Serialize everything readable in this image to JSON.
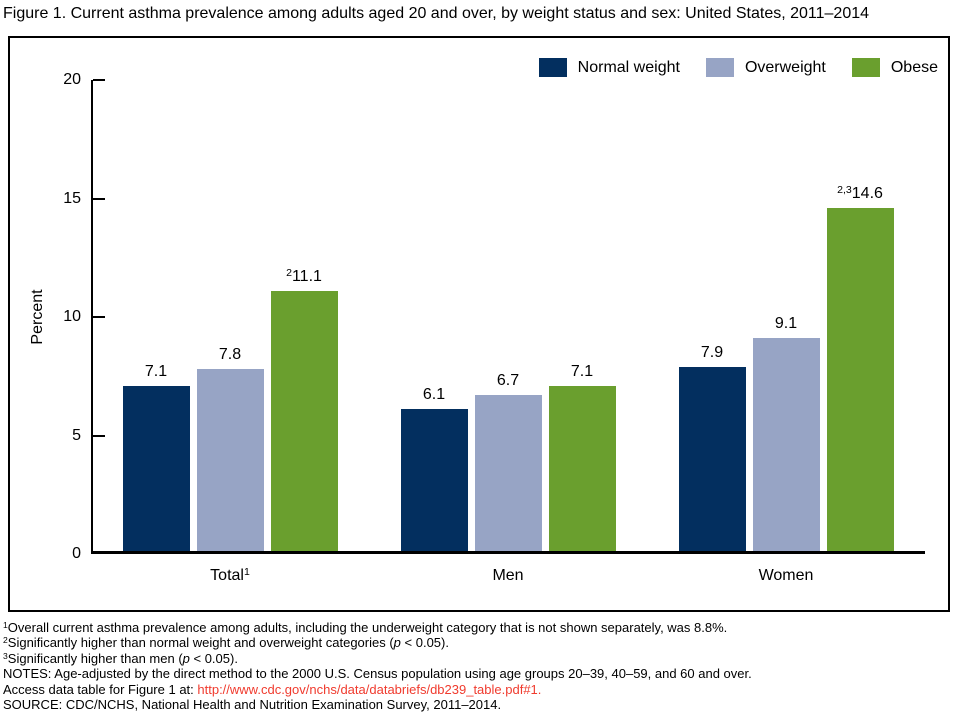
{
  "chart_data": {
    "type": "bar",
    "title": "Figure 1. Current asthma prevalence among adults aged 20 and over, by weight status and sex: United States, 2011–2014",
    "ylabel": "Percent",
    "xlabel": "",
    "categories": [
      "Total",
      "Men",
      "Women"
    ],
    "category_sups": [
      "1",
      "",
      ""
    ],
    "series": [
      {
        "name": "Normal weight",
        "color": "#032f5f",
        "values": [
          7.1,
          6.1,
          7.9
        ],
        "labels": [
          "7.1",
          "6.1",
          "7.9"
        ],
        "label_sups": [
          "",
          "",
          ""
        ]
      },
      {
        "name": "Overweight",
        "color": "#97a4c5",
        "values": [
          7.8,
          6.7,
          9.1
        ],
        "labels": [
          "7.8",
          "6.7",
          "9.1"
        ],
        "label_sups": [
          "",
          "",
          ""
        ]
      },
      {
        "name": "Obese",
        "color": "#6a9f2e",
        "values": [
          11.1,
          7.1,
          14.6
        ],
        "labels": [
          "11.1",
          "7.1",
          "14.6"
        ],
        "label_sups": [
          "2",
          "",
          "2,3"
        ]
      }
    ],
    "ylim": [
      0,
      20
    ],
    "yticks": [
      0,
      5,
      10,
      15,
      20
    ],
    "grid": false,
    "value_labels": true,
    "legend_position": "top-right"
  },
  "legend": {
    "items": [
      {
        "label": "Normal weight",
        "color": "#032f5f"
      },
      {
        "label": "Overweight",
        "color": "#97a4c5"
      },
      {
        "label": "Obese",
        "color": "#6a9f2e"
      }
    ]
  },
  "colors": {
    "bar_normal_weight": "#032f5f",
    "bar_overweight": "#97a4c5",
    "bar_obese": "#6a9f2e",
    "link": "#f03b2e",
    "axis": "#000000",
    "frame_border": "#000000",
    "background": "#ffffff"
  },
  "footnotes": {
    "lines": [
      {
        "segments": [
          {
            "sup": "1"
          },
          {
            "text": "Overall current asthma prevalence among adults, including the underweight category that is not shown separately, was 8.8%."
          }
        ]
      },
      {
        "segments": [
          {
            "sup": "2"
          },
          {
            "text": "Significantly higher than normal weight and overweight categories ("
          },
          {
            "text": "p",
            "italic": true
          },
          {
            "text": " < 0.05)."
          }
        ]
      },
      {
        "segments": [
          {
            "sup": "3"
          },
          {
            "text": "Significantly higher than men ("
          },
          {
            "text": "p",
            "italic": true
          },
          {
            "text": " < 0.05)."
          }
        ]
      },
      {
        "segments": [
          {
            "text": "NOTES: Age-adjusted by the direct method to the 2000 U.S. Census population using age groups 20–39, 40–59, and 60 and over."
          }
        ]
      },
      {
        "segments": [
          {
            "text": "Access data table for Figure 1 at: "
          },
          {
            "text": "http://www.cdc.gov/nchs/data/databriefs/db239_table.pdf#1.",
            "link": true
          }
        ]
      },
      {
        "segments": [
          {
            "text": "SOURCE: CDC/NCHS, National Health and Nutrition Examination Survey, 2011–2014."
          }
        ]
      }
    ]
  }
}
